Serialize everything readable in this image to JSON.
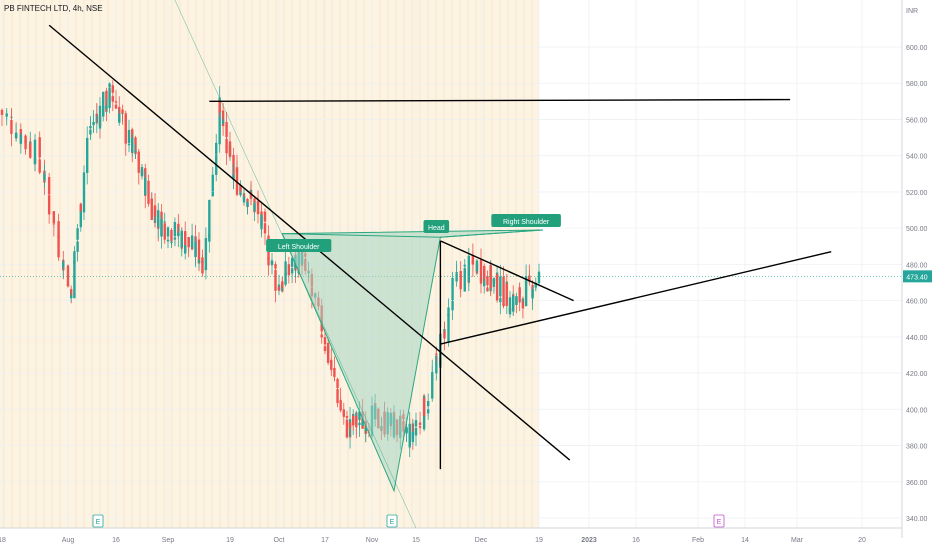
{
  "symbol_title": "PB FINTECH LTD, 4h, NSE",
  "price_axis": {
    "currency": "INR",
    "ticks": [
      600,
      580,
      560,
      540,
      520,
      500,
      480,
      460,
      440,
      420,
      400,
      380,
      360,
      340
    ],
    "last_price": "473.40"
  },
  "time_axis": {
    "ticks": [
      "18",
      "Aug",
      "16",
      "Sep",
      "19",
      "Oct",
      "17",
      "Nov",
      "15",
      "Dec",
      "19",
      "2023",
      "16",
      "Feb",
      "14",
      "Mar",
      "20"
    ]
  },
  "event_markers": [
    "E",
    "E",
    "E"
  ],
  "pattern_labels": {
    "left_shoulder": "Left Shoulder",
    "head": "Head",
    "right_shoulder": "Right Shoulder"
  },
  "colors": {
    "up": "#26a69a",
    "down": "#ef5350",
    "pattern_fill": "#a5d6c3",
    "pattern_line": "#2aa882",
    "trendline": "#000000",
    "label_bg": "#22a07c",
    "price_tag": "#26a69a",
    "highlight_band": "#fdf3e2"
  },
  "chart_data": {
    "type": "candlestick",
    "symbol": "PB FINTECH LTD",
    "interval": "4h",
    "exchange": "NSE",
    "currency": "INR",
    "last_price": 473.4,
    "ylim": [
      335,
      612
    ],
    "price_path": [
      {
        "date": "2022-07-18",
        "close": 565
      },
      {
        "date": "2022-07-26",
        "close": 540
      },
      {
        "date": "2022-08-02",
        "close": 462
      },
      {
        "date": "2022-08-08",
        "close": 555
      },
      {
        "date": "2022-08-15",
        "close": 575
      },
      {
        "date": "2022-08-22",
        "close": 540
      },
      {
        "date": "2022-08-29",
        "close": 505
      },
      {
        "date": "2022-09-05",
        "close": 495
      },
      {
        "date": "2022-09-12",
        "close": 482
      },
      {
        "date": "2022-09-16",
        "close": 565
      },
      {
        "date": "2022-09-20",
        "close": 530
      },
      {
        "date": "2022-09-27",
        "close": 510
      },
      {
        "date": "2022-10-03",
        "close": 468
      },
      {
        "date": "2022-10-10",
        "close": 485
      },
      {
        "date": "2022-10-17",
        "close": 440
      },
      {
        "date": "2022-10-24",
        "close": 390
      },
      {
        "date": "2022-10-31",
        "close": 395
      },
      {
        "date": "2022-11-07",
        "close": 392
      },
      {
        "date": "2022-11-14",
        "close": 385
      },
      {
        "date": "2022-11-18",
        "close": 405
      },
      {
        "date": "2022-11-22",
        "close": 440
      },
      {
        "date": "2022-11-25",
        "close": 470
      },
      {
        "date": "2022-11-30",
        "close": 480
      },
      {
        "date": "2022-12-06",
        "close": 468
      },
      {
        "date": "2022-12-12",
        "close": 458
      },
      {
        "date": "2022-12-19",
        "close": 473.4
      }
    ],
    "trendlines": [
      {
        "name": "descending trendline 1",
        "points": [
          [
            "2022-07-28",
            612
          ],
          [
            "2022-12-27",
            372
          ]
        ]
      },
      {
        "name": "resistance",
        "points": [
          [
            "2022-09-13",
            570
          ],
          [
            "2023-02-27",
            571
          ]
        ]
      },
      {
        "name": "head vertical",
        "points": [
          [
            "2022-11-21",
            493
          ],
          [
            "2022-11-21",
            367
          ]
        ]
      },
      {
        "name": "triangle upper",
        "points": [
          [
            "2022-11-21",
            493
          ],
          [
            "2022-12-28",
            460
          ]
        ]
      },
      {
        "name": "triangle lower",
        "points": [
          [
            "2022-11-21",
            436
          ],
          [
            "2023-03-11",
            487
          ]
        ]
      }
    ],
    "pattern": {
      "name": "inverse head and shoulders",
      "points": [
        [
          "2022-10-04",
          497
        ],
        [
          "2022-11-08",
          355
        ],
        [
          "2022-11-21",
          495
        ],
        [
          "2022-12-20",
          499
        ]
      ]
    }
  }
}
